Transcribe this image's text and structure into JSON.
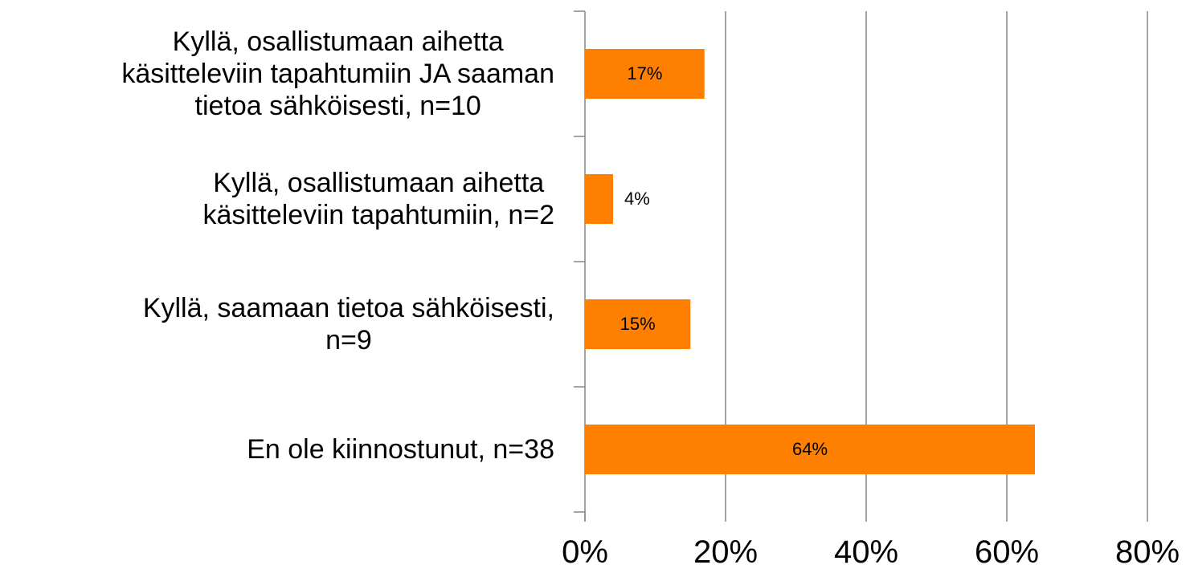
{
  "chart_data": {
    "type": "bar",
    "orientation": "horizontal",
    "categories": [
      "Kyllä, osallistumaan aihetta\nkäsitteleviin tapahtumiin JA saaman\ntietoa sähköisesti, n=10",
      "Kyllä, osallistumaan aihetta\nkäsitteleviin tapahtumiin, n=2",
      "Kyllä, saamaan tietoa sähköisesti,\nn=9",
      "En ole kiinnostunut, n=38"
    ],
    "values": [
      17,
      4,
      15,
      64
    ],
    "value_labels": [
      "17%",
      "4%",
      "15%",
      "64%"
    ],
    "color": "#ff8000",
    "xlim": [
      0,
      80
    ],
    "xticks": [
      {
        "value": 0,
        "label": "0%"
      },
      {
        "value": 20,
        "label": "20%"
      },
      {
        "value": 40,
        "label": "40%"
      },
      {
        "value": 60,
        "label": "60%"
      },
      {
        "value": 80,
        "label": "80%"
      }
    ],
    "grid": true
  }
}
